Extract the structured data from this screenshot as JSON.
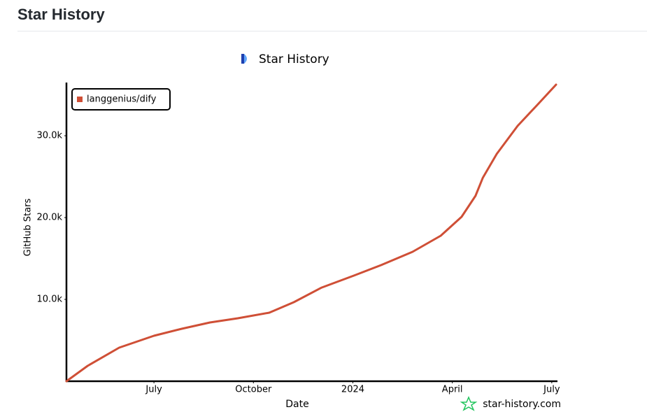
{
  "header": {
    "title": "Star History"
  },
  "chart_data": {
    "type": "line",
    "title": "Star History",
    "xlabel": "Date",
    "ylabel": "GitHub Stars",
    "watermark": "star-history.com",
    "xlim": [
      0.36,
      15.13
    ],
    "xticks": [
      {
        "value": 3,
        "label": "July"
      },
      {
        "value": 6,
        "label": "October"
      },
      {
        "value": 9,
        "label": "2024"
      },
      {
        "value": 12,
        "label": "April"
      },
      {
        "value": 15,
        "label": "July"
      }
    ],
    "ylim": [
      0,
      36500
    ],
    "yticks": [
      {
        "value": 10000,
        "label": "10.0k"
      },
      {
        "value": 20000,
        "label": "20.0k"
      },
      {
        "value": 30000,
        "label": "30.0k"
      }
    ],
    "grid": false,
    "legend": "upper left",
    "series": [
      {
        "name": "langgenius/dify",
        "color": "#cf4f36",
        "x": [
          0.36,
          1.0,
          1.95,
          3.0,
          3.84,
          4.69,
          5.53,
          6.48,
          7.22,
          8.06,
          9.03,
          9.85,
          10.8,
          11.65,
          12.28,
          12.7,
          12.92,
          13.34,
          13.97,
          14.6,
          15.13
        ],
        "values": [
          0,
          1880,
          4100,
          5560,
          6410,
          7180,
          7690,
          8380,
          9660,
          11450,
          12910,
          14190,
          15810,
          17780,
          20090,
          22650,
          24870,
          27780,
          31200,
          33930,
          36240
        ]
      }
    ]
  }
}
